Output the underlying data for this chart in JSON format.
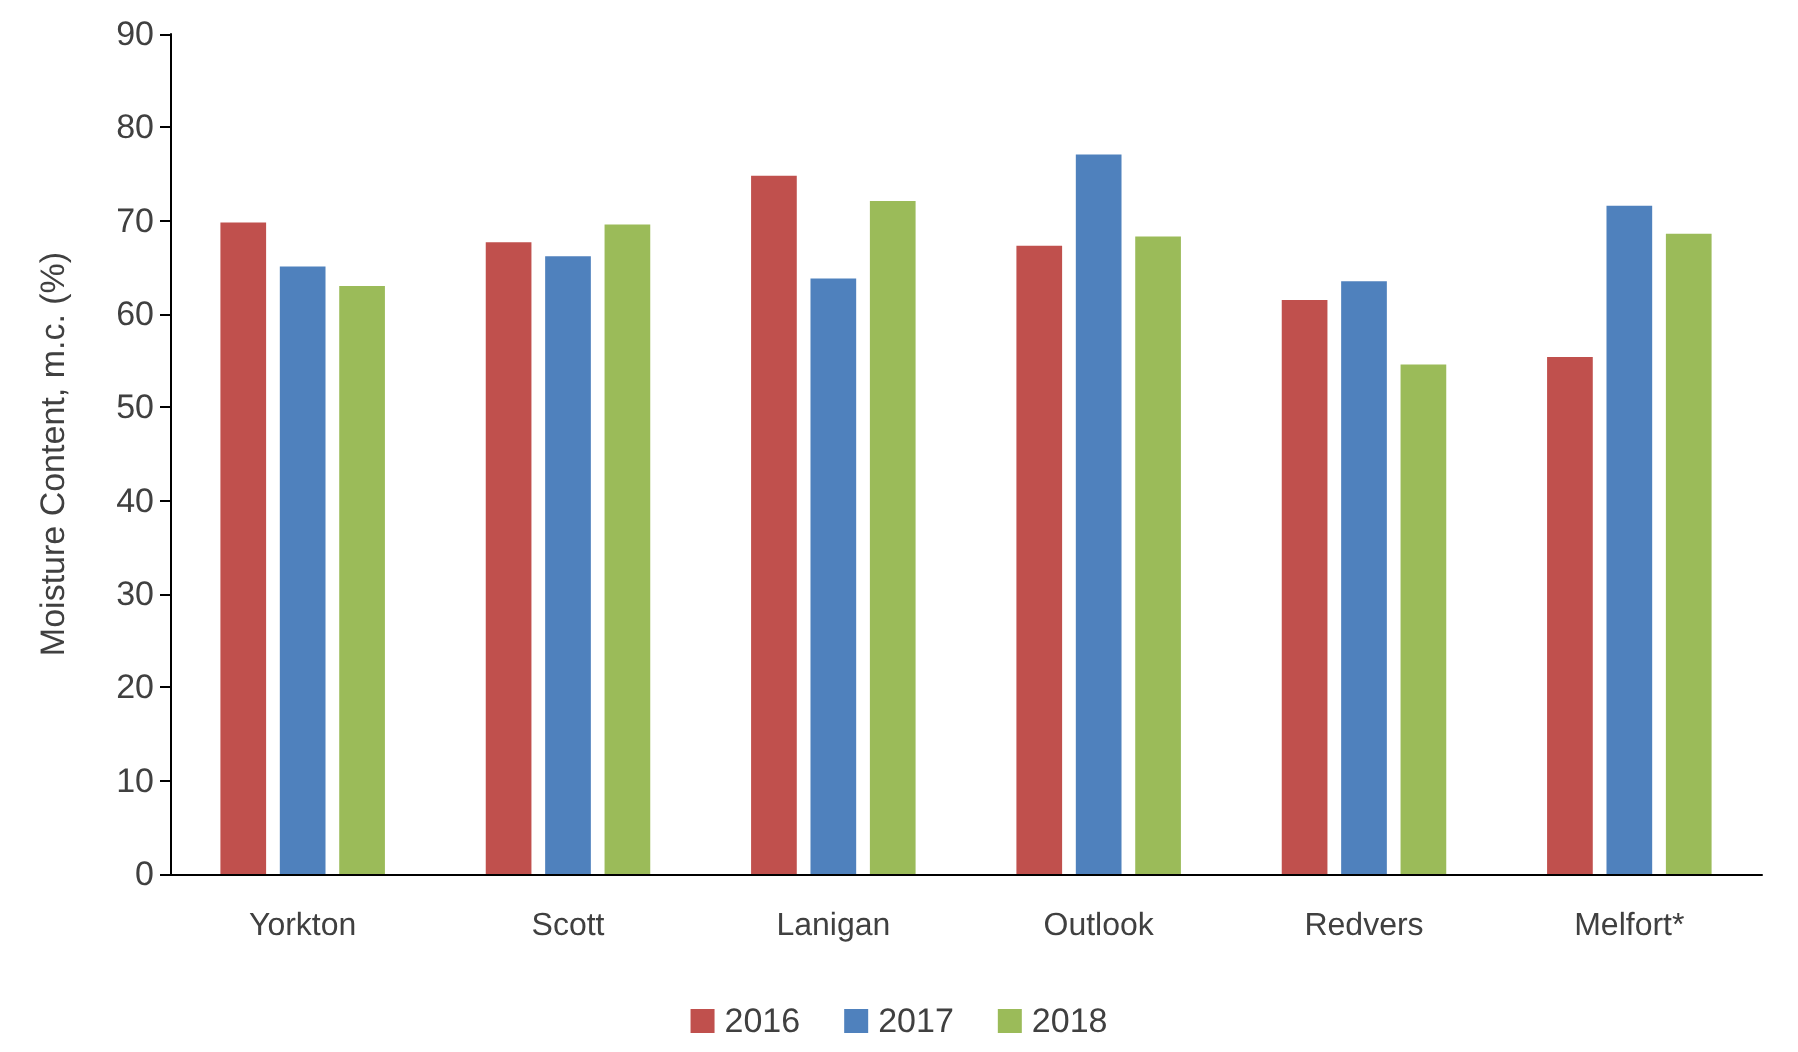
{
  "chart_data": {
    "type": "bar",
    "ylabel": "Moisture Content, m.c. (%)",
    "categories": [
      "Yorkton",
      "Scott",
      "Lanigan",
      "Outlook",
      "Redvers",
      "Melfort*"
    ],
    "series": [
      {
        "name": "2016",
        "color": "#c0504d",
        "values": [
          69.8,
          67.7,
          74.8,
          67.3,
          61.5,
          55.4
        ]
      },
      {
        "name": "2017",
        "color": "#4f81bd",
        "values": [
          65.1,
          66.2,
          63.8,
          77.1,
          63.5,
          71.6
        ]
      },
      {
        "name": "2018",
        "color": "#9bbb59",
        "values": [
          63,
          69.6,
          72.1,
          68.3,
          54.6,
          68.6
        ]
      }
    ],
    "ylim": [
      0,
      90
    ],
    "yticks": [
      0,
      10,
      20,
      30,
      40,
      50,
      60,
      70,
      80,
      90
    ],
    "grid": false,
    "legend": "bottom"
  }
}
